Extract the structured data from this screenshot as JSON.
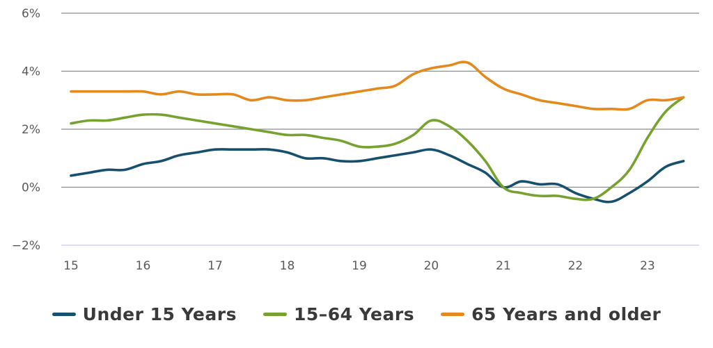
{
  "chart_data": {
    "type": "line",
    "title": "",
    "xlabel": "",
    "ylabel": "",
    "xlim": [
      15,
      23.6
    ],
    "ylim": [
      -2,
      6
    ],
    "x_ticks": [
      "15",
      "16",
      "17",
      "18",
      "19",
      "20",
      "21",
      "22",
      "23"
    ],
    "y_ticks": [
      "6%",
      "4%",
      "2%",
      "0%",
      "−2%"
    ],
    "grid": "horizontal",
    "legend_position": "bottom",
    "series": [
      {
        "name": "Under 15 Years",
        "color": "#17506f",
        "x": [
          15,
          15.25,
          15.5,
          15.75,
          16,
          16.25,
          16.5,
          16.75,
          17,
          17.25,
          17.5,
          17.75,
          18,
          18.25,
          18.5,
          18.75,
          19,
          19.25,
          19.5,
          19.75,
          20,
          20.25,
          20.5,
          20.75,
          21,
          21.25,
          21.5,
          21.75,
          22,
          22.25,
          22.5,
          22.75,
          23,
          23.25,
          23.5
        ],
        "y": [
          0.4,
          0.5,
          0.6,
          0.6,
          0.8,
          0.9,
          1.1,
          1.2,
          1.3,
          1.3,
          1.3,
          1.3,
          1.2,
          1.0,
          1.0,
          0.9,
          0.9,
          1.0,
          1.1,
          1.2,
          1.3,
          1.1,
          0.8,
          0.5,
          0.0,
          0.2,
          0.1,
          0.1,
          -0.2,
          -0.4,
          -0.5,
          -0.2,
          0.2,
          0.7,
          0.9
        ]
      },
      {
        "name": "15-64 Years",
        "color": "#78a22f",
        "x": [
          15,
          15.25,
          15.5,
          15.75,
          16,
          16.25,
          16.5,
          16.75,
          17,
          17.25,
          17.5,
          17.75,
          18,
          18.25,
          18.5,
          18.75,
          19,
          19.25,
          19.5,
          19.75,
          20,
          20.25,
          20.5,
          20.75,
          21,
          21.25,
          21.5,
          21.75,
          22,
          22.25,
          22.5,
          22.75,
          23,
          23.25,
          23.5
        ],
        "y": [
          2.2,
          2.3,
          2.3,
          2.4,
          2.5,
          2.5,
          2.4,
          2.3,
          2.2,
          2.1,
          2.0,
          1.9,
          1.8,
          1.8,
          1.7,
          1.6,
          1.4,
          1.4,
          1.5,
          1.8,
          2.3,
          2.1,
          1.6,
          0.9,
          0.0,
          -0.2,
          -0.3,
          -0.3,
          -0.4,
          -0.4,
          0.0,
          0.6,
          1.7,
          2.6,
          3.1
        ]
      },
      {
        "name": "65 Years and older",
        "color": "#e5891c",
        "x": [
          15,
          15.25,
          15.5,
          15.75,
          16,
          16.25,
          16.5,
          16.75,
          17,
          17.25,
          17.5,
          17.75,
          18,
          18.25,
          18.5,
          18.75,
          19,
          19.25,
          19.5,
          19.75,
          20,
          20.25,
          20.5,
          20.75,
          21,
          21.25,
          21.5,
          21.75,
          22,
          22.25,
          22.5,
          22.75,
          23,
          23.25,
          23.5
        ],
        "y": [
          3.3,
          3.3,
          3.3,
          3.3,
          3.3,
          3.2,
          3.3,
          3.2,
          3.2,
          3.2,
          3.0,
          3.1,
          3.0,
          3.0,
          3.1,
          3.2,
          3.3,
          3.4,
          3.5,
          3.9,
          4.1,
          4.2,
          4.3,
          3.8,
          3.4,
          3.2,
          3.0,
          2.9,
          2.8,
          2.7,
          2.7,
          2.7,
          3.0,
          3.0,
          3.1
        ]
      }
    ]
  },
  "legend": {
    "items": [
      {
        "label": "Under 15 Years",
        "color": "#17506f"
      },
      {
        "label": "15–64 Years",
        "color": "#78a22f"
      },
      {
        "label": "65 Years and older",
        "color": "#e5891c"
      }
    ]
  }
}
